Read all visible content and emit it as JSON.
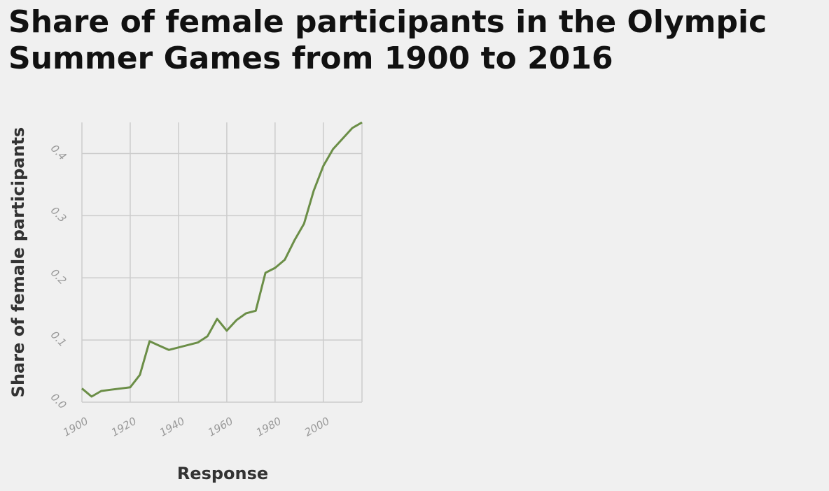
{
  "chart_data": {
    "type": "line",
    "title": "Share of female participants in the Olympic Summer Games from 1900 to 2016",
    "xlabel": "Response",
    "ylabel": "Share of female participants",
    "xlim": [
      1900,
      2016
    ],
    "ylim": [
      0,
      0.45
    ],
    "x_ticks": [
      1900,
      1920,
      1940,
      1960,
      1980,
      2000
    ],
    "x_tick_labels": [
      "1900",
      "1920",
      "1940",
      "1960",
      "1980",
      "2000"
    ],
    "y_ticks": [
      0,
      0.1,
      0.2,
      0.3,
      0.4
    ],
    "y_tick_labels": [
      "0.0",
      "0.1",
      "0.2",
      "0.3",
      "0.4"
    ],
    "grid": true,
    "line_color": "#6b8e47",
    "series": [
      {
        "x": [
          1900,
          1904,
          1908,
          1912,
          1920,
          1924,
          1928,
          1932,
          1936,
          1948,
          1952,
          1956,
          1960,
          1964,
          1968,
          1972,
          1976,
          1980,
          1984,
          1988,
          1992,
          1996,
          2000,
          2004,
          2008,
          2012,
          2016
        ],
        "values": [
          0.022,
          0.009,
          0.018,
          0.02,
          0.024,
          0.044,
          0.098,
          0.091,
          0.084,
          0.096,
          0.106,
          0.134,
          0.115,
          0.132,
          0.143,
          0.147,
          0.208,
          0.216,
          0.229,
          0.26,
          0.287,
          0.34,
          0.38,
          0.407,
          0.424,
          0.441,
          0.45
        ]
      }
    ]
  }
}
